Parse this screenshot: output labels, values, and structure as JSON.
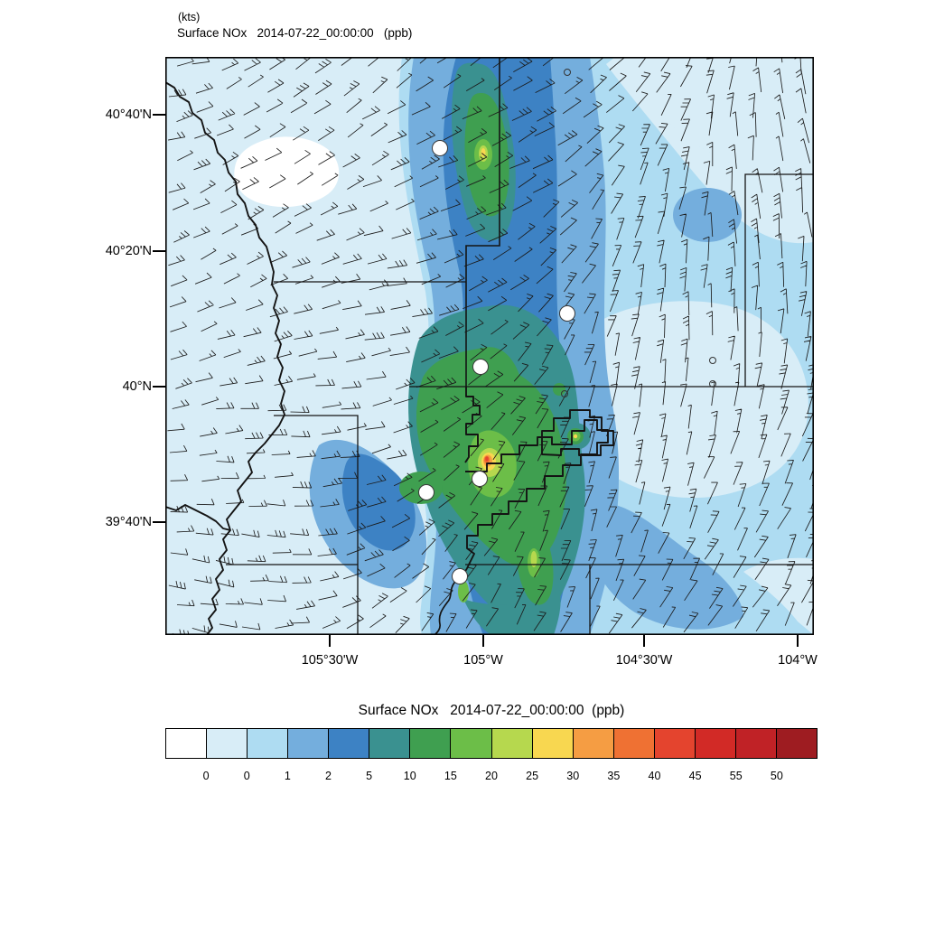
{
  "header": {
    "wind_units_label": "(kts)",
    "title": "Surface NOx   2014-07-22_00:00:00   (ppb)"
  },
  "map": {
    "y_ticks": [
      "40°40'N",
      "40°20'N",
      "40°N",
      "39°40'N"
    ],
    "x_ticks": [
      "105°30'W",
      "105°W",
      "104°30'W",
      "104°W"
    ],
    "station_marker_count": 6,
    "overlays": [
      "filled NOx contours",
      "wind barbs",
      "county boundaries",
      "station markers"
    ]
  },
  "colorbar": {
    "title": "Surface NOx   2014-07-22_00:00:00  (ppb)",
    "labels": [
      "0",
      "0",
      "1",
      "2",
      "5",
      "10",
      "15",
      "20",
      "25",
      "30",
      "35",
      "40",
      "45",
      "55",
      "50"
    ],
    "colors": [
      "#ffffff",
      "#d8edf7",
      "#aedcf2",
      "#74aedd",
      "#3d82c4",
      "#3a9190",
      "#3f9f50",
      "#6cbe48",
      "#b6d84e",
      "#f8d750",
      "#f59d43",
      "#ef7133",
      "#e4442e",
      "#d22a26",
      "#c02226",
      "#9e1c21"
    ]
  },
  "chart_data": {
    "type": "filled-contour-map",
    "title": "Surface NOx   2014-07-22_00:00:00  (ppb)",
    "variable": "Surface NOx",
    "units": "ppb",
    "wind_barb_units": "kts",
    "valid_time": "2014-07-22_00:00:00",
    "x_axis": {
      "tick_labels": [
        "105°30'W",
        "105°W",
        "104°30'W",
        "104°W"
      ]
    },
    "y_axis": {
      "tick_labels": [
        "40°40'N",
        "40°20'N",
        "40°N",
        "39°40'N"
      ]
    },
    "contour_levels": [
      "0",
      "0",
      "1",
      "2",
      "5",
      "10",
      "15",
      "20",
      "25",
      "30",
      "35",
      "40",
      "45",
      "55",
      "50"
    ],
    "palette": [
      "#ffffff",
      "#d8edf7",
      "#aedcf2",
      "#74aedd",
      "#3d82c4",
      "#3a9190",
      "#3f9f50",
      "#6cbe48",
      "#b6d84e",
      "#f8d750",
      "#f59d43",
      "#ef7133",
      "#e4442e",
      "#d22a26",
      "#c02226",
      "#9e1c21"
    ],
    "legend_position": "bottom",
    "notes_visible_features": "NOx maximum with red core near map center; secondary green/yellow maxima to the north and southeast; clean white pocket in the northwest"
  }
}
